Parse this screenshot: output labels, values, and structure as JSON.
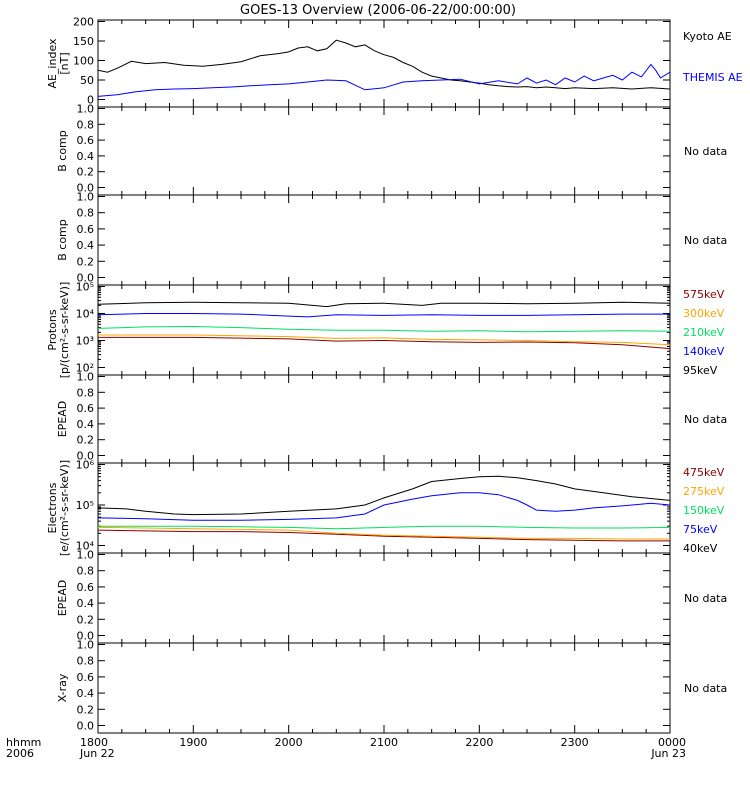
{
  "chart_data": {
    "title": "GOES-13 Overview (2006-06-22/00:00:00)",
    "type": "line",
    "x_axis": {
      "units": "hhmm",
      "year": "2006",
      "range": [
        "2006-06-22T18:00",
        "2006-06-23T00:00"
      ],
      "ticks": [
        {
          "t": 18,
          "label": "1800",
          "sub": "Jun 22"
        },
        {
          "t": 19,
          "label": "1900",
          "sub": ""
        },
        {
          "t": 20,
          "label": "2000",
          "sub": ""
        },
        {
          "t": 21,
          "label": "2100",
          "sub": ""
        },
        {
          "t": 22,
          "label": "2200",
          "sub": ""
        },
        {
          "t": 23,
          "label": "2300",
          "sub": ""
        },
        {
          "t": 24,
          "label": "0000",
          "sub": "Jun 23"
        }
      ]
    },
    "panels": [
      {
        "ylabel": [
          "AE_index",
          "[nT]"
        ],
        "scale": "linear",
        "ylim": [
          0,
          200
        ],
        "yticks": [
          0,
          50,
          100,
          150,
          200
        ],
        "nodata": "",
        "series": [
          {
            "name": "Kyoto AE",
            "color": "#000000",
            "x": [
              18.0,
              18.1,
              18.2,
              18.35,
              18.5,
              18.7,
              18.9,
              19.1,
              19.3,
              19.5,
              19.7,
              19.9,
              20.0,
              20.1,
              20.2,
              20.3,
              20.4,
              20.5,
              20.6,
              20.7,
              20.8,
              20.9,
              21.0,
              21.1,
              21.2,
              21.3,
              21.4,
              21.5,
              21.6,
              21.7,
              21.8,
              21.9,
              22.0,
              22.1,
              22.2,
              22.3,
              22.4,
              22.5,
              22.6,
              22.7,
              22.8,
              22.9,
              23.0,
              23.2,
              23.4,
              23.6,
              23.8,
              24.0
            ],
            "y": [
              75,
              70,
              80,
              98,
              92,
              95,
              88,
              85,
              90,
              97,
              112,
              118,
              122,
              132,
              135,
              125,
              130,
              152,
              145,
              135,
              140,
              125,
              115,
              108,
              95,
              85,
              70,
              60,
              55,
              50,
              48,
              45,
              42,
              38,
              35,
              33,
              32,
              33,
              30,
              32,
              30,
              28,
              30,
              28,
              30,
              27,
              30,
              27
            ]
          },
          {
            "name": "THEMIS AE",
            "color": "#0000ff",
            "x": [
              18.0,
              18.2,
              18.4,
              18.6,
              18.8,
              19.0,
              19.2,
              19.4,
              19.6,
              19.8,
              20.0,
              20.2,
              20.4,
              20.6,
              20.8,
              21.0,
              21.2,
              21.4,
              21.6,
              21.8,
              22.0,
              22.2,
              22.4,
              22.5,
              22.6,
              22.7,
              22.8,
              22.9,
              23.0,
              23.1,
              23.2,
              23.3,
              23.4,
              23.5,
              23.6,
              23.7,
              23.8,
              23.85,
              23.9,
              24.0
            ],
            "y": [
              8,
              12,
              20,
              25,
              27,
              28,
              30,
              32,
              35,
              38,
              40,
              45,
              50,
              48,
              25,
              30,
              45,
              48,
              50,
              52,
              40,
              48,
              40,
              55,
              42,
              50,
              38,
              55,
              45,
              60,
              48,
              55,
              62,
              50,
              70,
              58,
              90,
              75,
              55,
              70
            ]
          }
        ]
      },
      {
        "ylabel": [
          "B comp"
        ],
        "scale": "linear",
        "ylim": [
          0,
          1
        ],
        "yticks": [
          0.0,
          0.2,
          0.4,
          0.6,
          0.8,
          1.0
        ],
        "nodata": "No data",
        "series": []
      },
      {
        "ylabel": [
          "B comp"
        ],
        "scale": "linear",
        "ylim": [
          0,
          1
        ],
        "yticks": [
          0.0,
          0.2,
          0.4,
          0.6,
          0.8,
          1.0
        ],
        "nodata": "No data",
        "series": []
      },
      {
        "ylabel": [
          "Protons",
          "[p/(cm²-s-sr-keV)]"
        ],
        "scale": "log",
        "ylim": [
          100,
          100000
        ],
        "ytick_exp": [
          2,
          3,
          4,
          5
        ],
        "nodata": "",
        "series": [
          {
            "name": "575keV",
            "color": "#8b0000",
            "x": [
              18.0,
              19.0,
              20.0,
              20.5,
              21.0,
              21.5,
              22.0,
              22.5,
              23.0,
              23.5,
              24.0
            ],
            "y": [
              1300,
              1300,
              1150,
              950,
              1000,
              900,
              850,
              880,
              820,
              700,
              500
            ]
          },
          {
            "name": "300keV",
            "color": "#ffa500",
            "x": [
              18.0,
              19.0,
              20.0,
              20.5,
              21.0,
              21.5,
              22.0,
              22.5,
              23.0,
              23.5,
              24.0
            ],
            "y": [
              1600,
              1600,
              1400,
              1200,
              1250,
              1100,
              1050,
              1000,
              900,
              850,
              700
            ]
          },
          {
            "name": "210keV",
            "color": "#00e060",
            "x": [
              18.0,
              18.5,
              19.0,
              19.5,
              20.0,
              20.5,
              21.0,
              21.5,
              22.0,
              22.5,
              23.0,
              23.5,
              24.0
            ],
            "y": [
              2800,
              3200,
              3300,
              3000,
              2600,
              2400,
              2400,
              2200,
              2300,
              2100,
              2200,
              2300,
              2200
            ]
          },
          {
            "name": "140keV",
            "color": "#0000ff",
            "x": [
              18.0,
              18.5,
              19.0,
              19.5,
              20.0,
              20.2,
              20.5,
              21.0,
              21.5,
              22.0,
              22.5,
              23.0,
              23.5,
              24.0
            ],
            "y": [
              9000,
              10000,
              10000,
              9500,
              8000,
              7500,
              9000,
              8500,
              9000,
              8500,
              8500,
              9000,
              9500,
              9500
            ]
          },
          {
            "name": "95keV",
            "color": "#000000",
            "x": [
              18.0,
              18.5,
              19.0,
              19.5,
              20.0,
              20.4,
              20.6,
              21.0,
              21.4,
              21.6,
              22.0,
              22.5,
              23.0,
              23.5,
              24.0
            ],
            "y": [
              22000,
              25000,
              26000,
              25000,
              24000,
              18000,
              23000,
              24000,
              20000,
              24000,
              24000,
              23000,
              24000,
              26000,
              24000
            ]
          }
        ]
      },
      {
        "ylabel": [
          "EPEAD"
        ],
        "scale": "linear",
        "ylim": [
          0,
          1
        ],
        "yticks": [
          0.0,
          0.2,
          0.4,
          0.6,
          0.8,
          1.0
        ],
        "nodata": "No data",
        "series": []
      },
      {
        "ylabel": [
          "Electrons",
          "[e/(cm²-s-sr-keV)]"
        ],
        "scale": "log",
        "ylim": [
          10000,
          1000000
        ],
        "ytick_exp": [
          4,
          5,
          6
        ],
        "nodata": "",
        "series": [
          {
            "name": "475keV",
            "color": "#8b0000",
            "x": [
              18.0,
              18.5,
              19.0,
              19.5,
              20.0,
              20.5,
              21.0,
              21.5,
              22.0,
              22.5,
              23.0,
              23.5,
              24.0
            ],
            "y": [
              24000,
              23000,
              22000,
              22000,
              21000,
              19000,
              17000,
              16000,
              15000,
              14000,
              13500,
              13000,
              13000
            ]
          },
          {
            "name": "275keV",
            "color": "#ffa500",
            "x": [
              18.0,
              18.5,
              19.0,
              19.5,
              20.0,
              20.5,
              21.0,
              21.5,
              22.0,
              22.5,
              23.0,
              23.5,
              24.0
            ],
            "y": [
              28000,
              27000,
              26000,
              25000,
              24000,
              20000,
              18000,
              17000,
              16000,
              15000,
              15000,
              14500,
              14500
            ]
          },
          {
            "name": "150keV",
            "color": "#00e060",
            "x": [
              18.0,
              18.5,
              19.0,
              19.5,
              20.0,
              20.5,
              21.0,
              21.5,
              22.0,
              22.5,
              23.0,
              23.5,
              24.0
            ],
            "y": [
              30000,
              30000,
              30000,
              29000,
              28000,
              26000,
              28000,
              30000,
              30000,
              28000,
              27000,
              27000,
              28000
            ]
          },
          {
            "name": "75keV",
            "color": "#0000ff",
            "x": [
              18.0,
              18.5,
              19.0,
              19.5,
              20.0,
              20.5,
              20.8,
              21.0,
              21.3,
              21.5,
              21.8,
              22.0,
              22.2,
              22.4,
              22.5,
              22.6,
              22.8,
              23.0,
              23.2,
              23.5,
              23.8,
              24.0
            ],
            "y": [
              48000,
              46000,
              42000,
              42000,
              44000,
              48000,
              60000,
              100000,
              140000,
              170000,
              200000,
              200000,
              180000,
              130000,
              100000,
              75000,
              70000,
              75000,
              85000,
              95000,
              110000,
              100000
            ]
          },
          {
            "name": "40keV",
            "color": "#000000",
            "x": [
              18.0,
              18.3,
              18.5,
              18.8,
              19.0,
              19.5,
              20.0,
              20.5,
              20.8,
              21.0,
              21.3,
              21.5,
              21.8,
              22.0,
              22.2,
              22.4,
              22.6,
              22.8,
              23.0,
              23.3,
              23.6,
              24.0
            ],
            "y": [
              85000,
              80000,
              70000,
              60000,
              58000,
              60000,
              70000,
              80000,
              100000,
              150000,
              250000,
              380000,
              450000,
              500000,
              510000,
              470000,
              400000,
              330000,
              250000,
              200000,
              160000,
              130000
            ]
          }
        ]
      },
      {
        "ylabel": [
          "EPEAD"
        ],
        "scale": "linear",
        "ylim": [
          0,
          1
        ],
        "yticks": [
          0.0,
          0.2,
          0.4,
          0.6,
          0.8,
          1.0
        ],
        "nodata": "No data",
        "series": []
      },
      {
        "ylabel": [
          "X-ray"
        ],
        "scale": "linear",
        "ylim": [
          0,
          1
        ],
        "yticks": [
          0.0,
          0.2,
          0.4,
          0.6,
          0.8,
          1.0
        ],
        "nodata": "No data",
        "series": []
      }
    ]
  }
}
